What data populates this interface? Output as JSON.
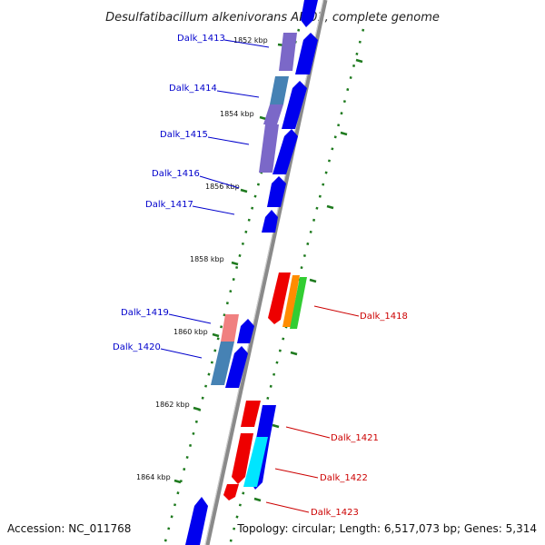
{
  "title": "Desulfatibacillum alkenivorans AK-01, complete genome",
  "footer": {
    "accession": "Accession: NC_011768",
    "topology": "Topology: circular; Length: 6,517,073 bp; Genes: 5,314"
  },
  "colors": {
    "backbone": "#8a8a8a",
    "tick": "#1e7a1e",
    "forward_gene_label": "#0000cc",
    "reverse_gene_label": "#cc0000",
    "cds_blue": "#0000ee",
    "cds_red": "#ee0000",
    "purple": "#7b68c8",
    "steelblue": "#4682b4",
    "pink": "#f08080",
    "orange": "#ff8c00",
    "green": "#32cd32",
    "cyan": "#00e5ff"
  },
  "kbp_labels": [
    {
      "text": "1852 kbp"
    },
    {
      "text": "1854 kbp"
    },
    {
      "text": "1856 kbp"
    },
    {
      "text": "1858 kbp"
    },
    {
      "text": "1860 kbp"
    },
    {
      "text": "1862 kbp"
    },
    {
      "text": "1864 kbp"
    }
  ],
  "gene_labels_forward": [
    {
      "text": "Dalk_1413"
    },
    {
      "text": "Dalk_1414"
    },
    {
      "text": "Dalk_1415"
    },
    {
      "text": "Dalk_1416"
    },
    {
      "text": "Dalk_1417"
    },
    {
      "text": "Dalk_1419"
    },
    {
      "text": "Dalk_1420"
    }
  ],
  "gene_labels_reverse": [
    {
      "text": "Dalk_1418"
    },
    {
      "text": "Dalk_1421"
    },
    {
      "text": "Dalk_1422"
    },
    {
      "text": "Dalk_1423"
    }
  ]
}
